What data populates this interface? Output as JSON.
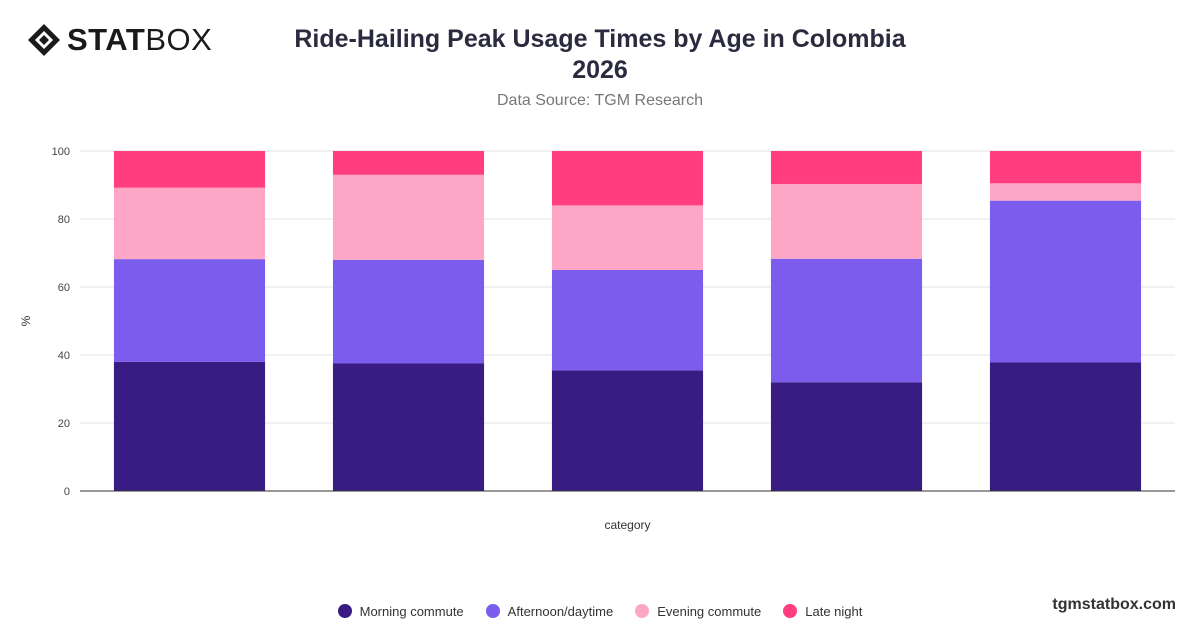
{
  "brand": {
    "logo_bold": "STAT",
    "logo_light": "BOX",
    "watermark": "tgmstatbox.com"
  },
  "chart_data": {
    "type": "bar",
    "stacked": true,
    "title": "Ride-Hailing Peak Usage Times by Age in Colombia 2026",
    "subtitle": "Data Source: TGM Research",
    "xlabel": "category",
    "ylabel": "%",
    "ylim": [
      0,
      100
    ],
    "yticks": [
      0,
      20,
      40,
      60,
      80,
      100
    ],
    "grid": true,
    "legend_position": "bottom",
    "categories": [
      "",
      "",
      "",
      "",
      ""
    ],
    "series": [
      {
        "name": "Morning commute",
        "color": "#381c84",
        "values": [
          38,
          37.5,
          35.5,
          32,
          37.8
        ]
      },
      {
        "name": "Afternoon/daytime",
        "color": "#7b5ced",
        "values": [
          30.2,
          30.5,
          29.5,
          36.3,
          47.6
        ]
      },
      {
        "name": "Evening commute",
        "color": "#fda6c6",
        "values": [
          21,
          25,
          19,
          22,
          5.1
        ]
      },
      {
        "name": "Late night",
        "color": "#ff3d7f",
        "values": [
          10.8,
          7,
          16,
          9.7,
          9.5
        ]
      }
    ]
  }
}
